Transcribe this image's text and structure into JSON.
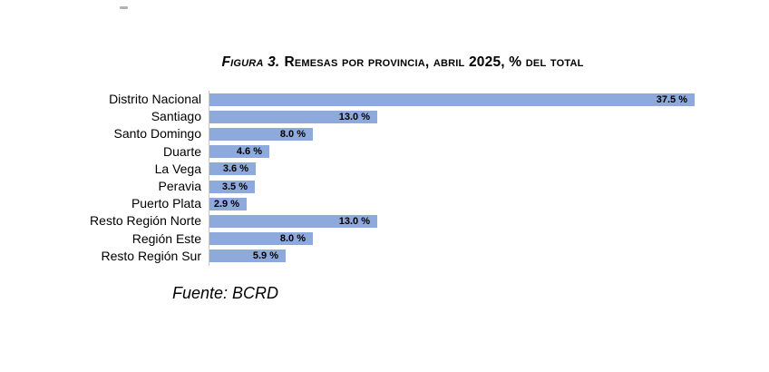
{
  "title": {
    "prefix": "Figura 3.",
    "rest": "Remesas por provincia, abril 2025, % del total"
  },
  "source_note": "Fuente: BCRD",
  "chart_data": {
    "type": "bar",
    "orientation": "horizontal",
    "title": "Figura 3. Remesas por provincia, abril 2025, % del total",
    "categories": [
      "Distrito Nacional",
      "Santiago",
      "Santo Domingo",
      "Duarte",
      "La Vega",
      "Peravia",
      "Puerto Plata",
      "Resto Región Norte",
      "Región Este",
      "Resto Región Sur"
    ],
    "values": [
      37.5,
      13.0,
      8.0,
      4.6,
      3.6,
      3.5,
      2.9,
      13.0,
      8.0,
      5.9
    ],
    "value_labels": [
      "37.5 %",
      "13.0 %",
      "8.0 %",
      "4.6 %",
      "3.6 %",
      "3.5 %",
      "2.9 %",
      "13.0 %",
      "8.0 %",
      "5.9 %"
    ],
    "unit": "% del total",
    "xlim": [
      0,
      37.5
    ],
    "bar_color": "#8EA9DB",
    "axis_line_color": "#C9C9C9",
    "grid": false,
    "legend": false,
    "value_label_position": "inside-end",
    "source": "Fuente: BCRD"
  }
}
